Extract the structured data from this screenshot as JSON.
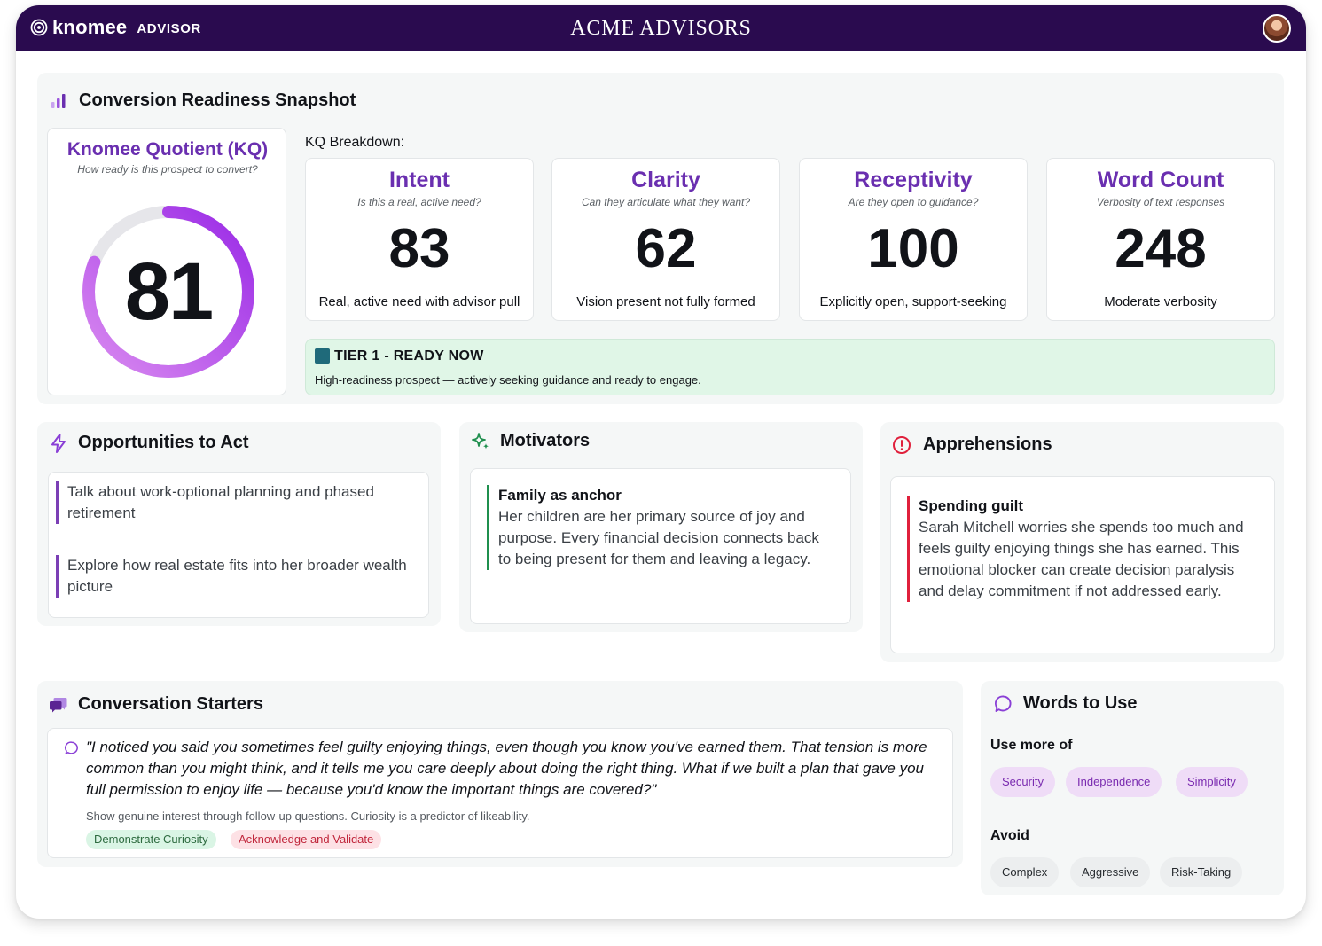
{
  "header": {
    "brand_name": "knomee",
    "brand_sub": "ADVISOR",
    "org_title": "ACME ADVISORS"
  },
  "snapshot": {
    "title": "Conversion Readiness Snapshot",
    "kq": {
      "title": "Knomee Quotient (KQ)",
      "subtitle": "How ready is this prospect to convert?",
      "value": "81",
      "percent": 81
    },
    "breakdown_label": "KQ Breakdown:",
    "metrics": [
      {
        "title": "Intent",
        "question": "Is this a real, active need?",
        "value": "83",
        "desc": "Real, active need with advisor pull"
      },
      {
        "title": "Clarity",
        "question": "Can they articulate what they want?",
        "value": "62",
        "desc": "Vision present not fully formed"
      },
      {
        "title": "Receptivity",
        "question": "Are they open to guidance?",
        "value": "100",
        "desc": "Explicitly open,  support-seeking"
      },
      {
        "title": "Word Count",
        "question": "Verbosity of text responses",
        "value": "248",
        "desc": "Moderate verbosity"
      }
    ],
    "tier": {
      "title": "TIER 1 - READY NOW",
      "desc": "High-readiness prospect — actively seeking guidance and ready to engage."
    }
  },
  "opportunities": {
    "title": "Opportunities to Act",
    "items": [
      "Talk about work-optional planning and phased retirement",
      "Explore how real estate fits into her broader wealth picture"
    ]
  },
  "motivators": {
    "title": "Motivators",
    "items": [
      {
        "heading": "Family as anchor",
        "text": "Her children are her primary source of joy and purpose. Every financial decision connects back to being present for them and leaving a legacy."
      }
    ]
  },
  "apprehensions": {
    "title": "Apprehensions",
    "items": [
      {
        "heading": "Spending guilt",
        "text": "Sarah Mitchell worries she spends too much and feels guilty enjoying things she has earned. This emotional blocker can create decision paralysis and delay commitment if not addressed early."
      }
    ]
  },
  "conversation": {
    "title": "Conversation Starters",
    "quote": "\"I noticed you said you sometimes feel guilty enjoying things, even though you know you've earned them. That tension is more common than you might think, and it tells me you care deeply about doing the right thing. What if we built a plan that gave you full permission to enjoy life — because you'd know the important things are covered?\"",
    "note": "Show genuine interest through follow-up questions. Curiosity is a predictor of likeability.",
    "tags": [
      "Demonstrate Curiosity",
      "Acknowledge and Validate"
    ]
  },
  "words": {
    "title": "Words to Use",
    "use_more_label": "Use more of",
    "use_more": [
      "Security",
      "Independence",
      "Simplicity"
    ],
    "avoid_label": "Avoid",
    "avoid": [
      "Complex",
      "Aggressive",
      "Risk-Taking"
    ]
  },
  "colors": {
    "header_bg": "#2a0b4f",
    "accent_purple": "#6a2fb0",
    "tier_bg": "#e0f6e7",
    "opportunity_bar": "#7b3fb5",
    "motivator_bar": "#1f8f4e",
    "apprehension_bar": "#e0203c"
  },
  "icons": {
    "brand": "knomee-logo-icon",
    "snapshot": "bar-chart-icon",
    "opportunities": "lightning-icon",
    "motivators": "sparkle-icon",
    "apprehensions": "alert-circle-icon",
    "conversation": "chat-bubbles-icon",
    "words": "speech-bubble-icon"
  }
}
